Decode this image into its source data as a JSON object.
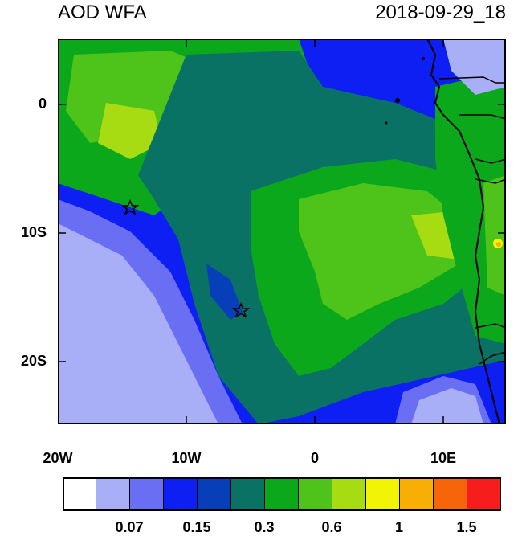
{
  "title": {
    "left": "AOD WFA",
    "right": "2018-09-29_18"
  },
  "axes": {
    "lon_ticks": [
      "20W",
      "10W",
      "0",
      "10E"
    ],
    "lat_ticks": [
      "0",
      "10S",
      "20S"
    ]
  },
  "colorbar": {
    "colors": [
      "#ffffff",
      "#a9aff7",
      "#6a6ef3",
      "#0d1ff2",
      "#063fb8",
      "#0a7264",
      "#0ca81c",
      "#4ec31a",
      "#a8dc12",
      "#f2f406",
      "#f8ae05",
      "#f7650a",
      "#f71d1d"
    ],
    "labels": [
      "0.07",
      "0.15",
      "0.3",
      "0.6",
      "1",
      "1.5"
    ]
  },
  "map": {
    "field_colors": {
      "very_low": "#a9aff7",
      "low": "#6a6ef3",
      "blue": "#0d1ff2",
      "deep_blue": "#063fb8",
      "teal": "#0a7264",
      "green": "#0ca81c",
      "light_green": "#4ec31a",
      "yellow_green": "#a8dc12",
      "yellow": "#f2f406",
      "orange": "#f8ae05"
    },
    "stars": [
      {
        "name": "star-marker-north"
      },
      {
        "name": "star-marker-south"
      }
    ]
  }
}
